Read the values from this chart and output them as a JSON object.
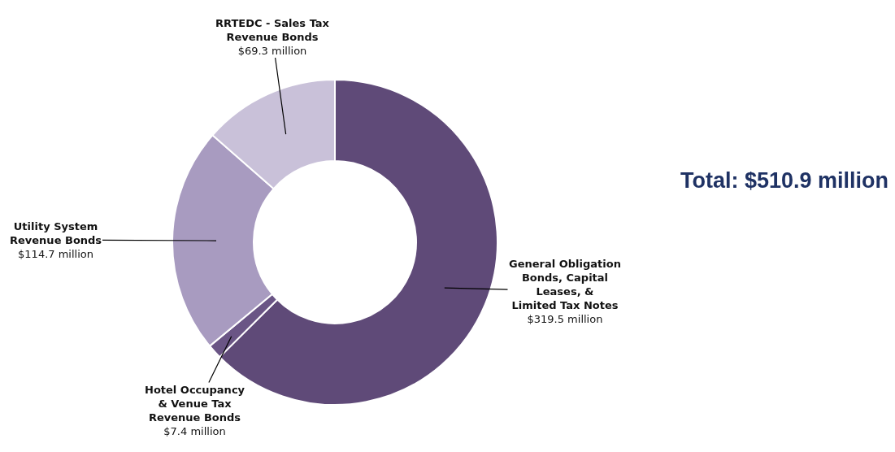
{
  "chart_data": {
    "type": "donut",
    "categories": [
      "General Obligation Bonds, Capital Leases, & Limited Tax Notes",
      "Hotel Occupancy & Venue Tax Revenue Bonds",
      "Utility System Revenue Bonds",
      "RRTEDC - Sales Tax Revenue Bonds"
    ],
    "values": [
      319.5,
      7.4,
      114.7,
      69.3
    ],
    "value_labels": [
      "$319.5 million",
      "$7.4 million",
      "$114.7 million",
      "$69.3 million"
    ],
    "colors": [
      "#5f4a78",
      "#6a5585",
      "#a89bc0",
      "#c9c1d9"
    ],
    "annotations": [
      "Total: $510.9 million"
    ],
    "legend": false
  }
}
